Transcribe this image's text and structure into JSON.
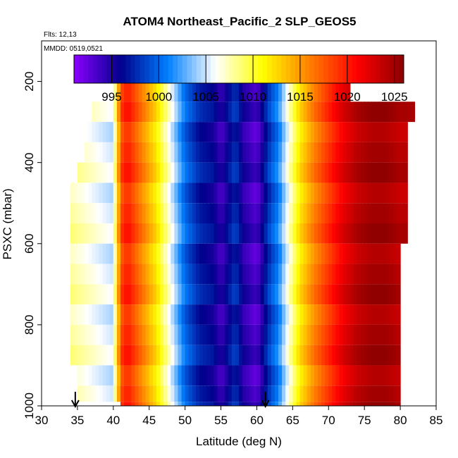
{
  "chart_data": {
    "type": "heatmap",
    "title": "ATOM4 Northeast_Pacific_2 SLP_GEOS5",
    "subtitle_flights": "Flts: 12,13",
    "subtitle_dates": "MMDD: 0519,0521",
    "xlabel": "Latitude (deg N)",
    "ylabel": "PSXC (mbar)",
    "xlim": [
      30,
      85
    ],
    "ylim": [
      1000,
      100
    ],
    "x_ticks": [
      "30",
      "35",
      "40",
      "45",
      "50",
      "55",
      "60",
      "65",
      "70",
      "75",
      "80",
      "85"
    ],
    "y_ticks": [
      "200",
      "400",
      "600",
      "800",
      "1000"
    ],
    "colorbar": {
      "range": [
        991,
        1026
      ],
      "tick_labels": [
        "995",
        "1000",
        "1005",
        "1010",
        "1015",
        "1020",
        "1025"
      ],
      "tick_values": [
        995,
        1000,
        1005,
        1010,
        1015,
        1020,
        1025
      ],
      "colors": [
        "#8b00ff",
        "#00008b",
        "#0080ff",
        "#ffffff",
        "#ffff00",
        "#ff8000",
        "#ff0000",
        "#8b0000"
      ]
    },
    "slp_profile": {
      "latitude": [
        34,
        36,
        38,
        40,
        41,
        42,
        44,
        46,
        48,
        50,
        52,
        54,
        55,
        56,
        57,
        58,
        59,
        60,
        61,
        62,
        63,
        64,
        66,
        68,
        70,
        72,
        74,
        76,
        78,
        80,
        82
      ],
      "slp": [
        1008,
        1007,
        1006,
        1005,
        1018,
        1020,
        1016,
        1012,
        1006,
        1000,
        997,
        996,
        994,
        996,
        998,
        995,
        994,
        993,
        996,
        999,
        1001,
        1005,
        1012,
        1016,
        1019,
        1022,
        1024,
        1025,
        1025,
        1024,
        1024
      ]
    },
    "legs": [
      {
        "p": [
          180,
          200
        ],
        "lat": [
          38,
          68
        ]
      },
      {
        "p": [
          200,
          250
        ],
        "lat": [
          40,
          73
        ]
      },
      {
        "p": [
          250,
          300
        ],
        "lat": [
          37,
          82
        ]
      },
      {
        "p": [
          300,
          350
        ],
        "lat": [
          36,
          81
        ]
      },
      {
        "p": [
          350,
          400
        ],
        "lat": [
          36,
          81
        ]
      },
      {
        "p": [
          400,
          450
        ],
        "lat": [
          35,
          81
        ]
      },
      {
        "p": [
          450,
          500
        ],
        "lat": [
          34,
          81
        ]
      },
      {
        "p": [
          500,
          550
        ],
        "lat": [
          34,
          81
        ]
      },
      {
        "p": [
          550,
          600
        ],
        "lat": [
          34,
          81
        ]
      },
      {
        "p": [
          600,
          650
        ],
        "lat": [
          34,
          80
        ]
      },
      {
        "p": [
          650,
          700
        ],
        "lat": [
          34,
          80
        ]
      },
      {
        "p": [
          700,
          750
        ],
        "lat": [
          34,
          80
        ]
      },
      {
        "p": [
          750,
          800
        ],
        "lat": [
          34,
          80
        ]
      },
      {
        "p": [
          800,
          850
        ],
        "lat": [
          34,
          80
        ]
      },
      {
        "p": [
          850,
          900
        ],
        "lat": [
          34,
          80
        ]
      },
      {
        "p": [
          900,
          950
        ],
        "lat": [
          35,
          80
        ]
      },
      {
        "p": [
          950,
          990
        ],
        "lat": [
          35,
          80
        ]
      },
      {
        "p": [
          990,
          1000
        ],
        "lat": [
          41,
          80
        ]
      }
    ],
    "markers": [
      {
        "label": "arrow-1",
        "lat": 34.7
      },
      {
        "label": "arrow-2",
        "lat": 61.2
      }
    ]
  }
}
